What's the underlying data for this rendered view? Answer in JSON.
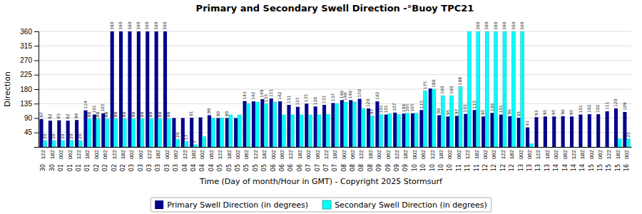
{
  "chart_data": {
    "type": "bar",
    "title": "Primary and Secondary Swell Direction -°Buoy TPC21",
    "x_label": "Time (Day of month/Hour in GMT) - Copyright 2025 Stormsurf",
    "y_label": "Direction",
    "categories": [
      [
        "122",
        "30"
      ],
      [
        "182",
        "30"
      ],
      [
        "002",
        "01"
      ],
      [
        "062",
        "01"
      ],
      [
        "122",
        "01"
      ],
      [
        "182",
        "01"
      ],
      [
        "002",
        "02"
      ],
      [
        "062",
        "02"
      ],
      [
        "122",
        "02"
      ],
      [
        "182",
        "02"
      ],
      [
        "002",
        "03"
      ],
      [
        "062",
        "03"
      ],
      [
        "122",
        "03"
      ],
      [
        "182",
        "03"
      ],
      [
        "002",
        "03"
      ],
      [
        "062",
        "03"
      ],
      [
        "122",
        "04"
      ],
      [
        "182",
        "04"
      ],
      [
        "002",
        "04"
      ],
      [
        "062",
        "04"
      ],
      [
        "122",
        "05"
      ],
      [
        "182",
        "05"
      ],
      [
        "002",
        "05"
      ],
      [
        "062",
        "05"
      ],
      [
        "122",
        "05"
      ],
      [
        "182",
        "05"
      ],
      [
        "002",
        "06"
      ],
      [
        "062",
        "06"
      ],
      [
        "122",
        "06"
      ],
      [
        "182",
        "06"
      ],
      [
        "002",
        "07"
      ],
      [
        "062",
        "07"
      ],
      [
        "122",
        "07"
      ],
      [
        "182",
        "07"
      ],
      [
        "002",
        "08"
      ],
      [
        "062",
        "08"
      ],
      [
        "122",
        "08"
      ],
      [
        "182",
        "08"
      ],
      [
        "002",
        "09"
      ],
      [
        "062",
        "09"
      ],
      [
        "122",
        "09"
      ],
      [
        "182",
        "09"
      ],
      [
        "002",
        "10"
      ],
      [
        "062",
        "10"
      ],
      [
        "122",
        "10"
      ],
      [
        "182",
        "10"
      ],
      [
        "002",
        "10"
      ],
      [
        "062",
        "11"
      ],
      [
        "122",
        "11"
      ],
      [
        "182",
        "11"
      ],
      [
        "002",
        "12"
      ],
      [
        "062",
        "12"
      ],
      [
        "122",
        "12"
      ],
      [
        "182",
        "12"
      ],
      [
        "002",
        "13"
      ],
      [
        "062",
        "13"
      ],
      [
        "122",
        "13"
      ],
      [
        "182",
        "13"
      ],
      [
        "002",
        "14"
      ],
      [
        "062",
        "14"
      ],
      [
        "122",
        "14"
      ],
      [
        "182",
        "14"
      ],
      [
        "002",
        "15"
      ],
      [
        "062",
        "15"
      ],
      [
        "122",
        "15"
      ],
      [
        "182",
        "15"
      ],
      [
        "002",
        "16"
      ]
    ],
    "series": [
      {
        "name": "Primary Swell Direction (in degrees)",
        "color": "#00008B",
        "values": [
          87,
          82,
          83,
          82,
          84,
          114,
          101,
          105,
          360,
          360,
          360,
          360,
          360,
          360,
          360,
          90,
          90,
          91,
          92,
          99,
          90,
          90,
          90,
          143,
          142,
          149,
          151,
          142,
          131,
          125,
          135,
          126,
          131,
          137,
          146,
          146,
          150,
          120,
          142,
          101,
          107,
          104,
          105,
          115,
          182,
          99,
          95,
          97,
          103,
          115,
          95,
          106,
          101,
          96,
          91,
          61,
          93,
          95,
          95,
          96,
          95,
          101,
          102,
          102,
          111,
          120,
          109
        ],
        "value_labels": [
          "87",
          "82",
          "83",
          "82",
          "84",
          "114",
          "101",
          "105",
          "360",
          "360",
          "360",
          "360",
          "360",
          "360",
          "360",
          null,
          null,
          "91",
          null,
          "99",
          "90",
          "90",
          null,
          "143",
          "142",
          "149",
          "151",
          "142",
          "131",
          "125",
          "135",
          "126",
          "131",
          "137",
          "146",
          "146",
          "150",
          "120",
          "142",
          "101",
          "107",
          "104",
          "105",
          "115",
          null,
          "99",
          "95",
          "97",
          "103",
          "115",
          "95",
          "106",
          "101",
          "96",
          "91",
          "61",
          "93",
          "95",
          "95",
          "96",
          "95",
          "101",
          "102",
          "102",
          "111",
          "120",
          "109"
        ]
      },
      {
        "name": "Secondary Swell Direction (in degrees)",
        "color": "#00FFFF",
        "values": [
          20,
          20,
          20,
          20,
          20,
          88,
          88,
          88,
          88,
          88,
          88,
          88,
          88,
          88,
          88,
          24,
          17,
          7,
          32,
          90,
          90,
          100,
          100,
          135,
          140,
          135,
          140,
          100,
          100,
          100,
          100,
          100,
          101,
          135,
          140,
          140,
          120,
          97,
          101,
          104,
          101,
          105,
          105,
          175,
          180,
          160,
          160,
          188,
          360,
          360,
          360,
          360,
          360,
          360,
          360,
          10,
          null,
          null,
          null,
          null,
          null,
          null,
          null,
          null,
          null,
          25,
          25
        ],
        "value_labels": [
          "20",
          "20",
          "20",
          "20",
          "20",
          "88",
          "88",
          "88",
          "88",
          "88",
          "88",
          "88",
          "88",
          "88",
          "88",
          "24",
          "17",
          "7",
          null,
          null,
          null,
          null,
          null,
          null,
          null,
          "135",
          null,
          null,
          null,
          null,
          null,
          null,
          null,
          null,
          "140",
          null,
          null,
          "97",
          "101",
          null,
          null,
          "105",
          null,
          "175",
          "180",
          "160",
          "160",
          "188",
          null,
          "360",
          "360",
          "360",
          "360",
          "360",
          "360",
          null,
          null,
          null,
          null,
          null,
          null,
          null,
          null,
          null,
          null,
          null,
          "25"
        ]
      }
    ],
    "ylim": [
      0,
      360
    ],
    "yticks": [
      45,
      90,
      135,
      180,
      225,
      270,
      315,
      360
    ],
    "grid": true,
    "legend": "bottom",
    "data_labels": true
  }
}
